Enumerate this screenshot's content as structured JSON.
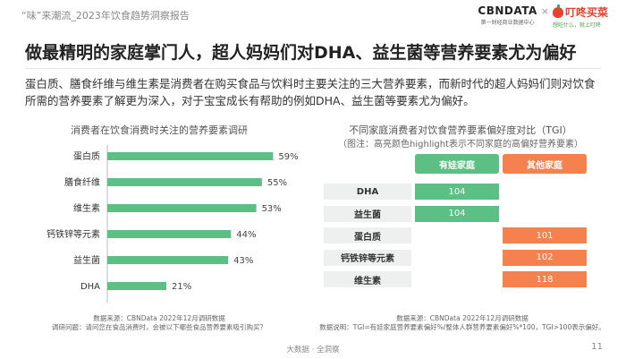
{
  "header": {
    "report_name": "“味”来潮流_2023年饮食趋势洞察报告",
    "logo_cbn": "CBNDATA",
    "logo_cbn_sub": "第一财经商业数据中心",
    "logo_separator": "×",
    "logo_dd": "叮咚买菜",
    "logo_dd_sub": "想吃什么，就上叮咚"
  },
  "title": "做最精明的家庭掌门人，超人妈妈们对DHA、益生菌等营养要素尤为偏好",
  "description": "蛋白质、膳食纤维与维生素是消费者在购买食品与饮料时主要关注的三大营养要素，而新时代的超人妈妈们则对饮食所需的营养要素了解更为深入，对于宝宝成长有帮助的例如DHA、益生菌等要素尤为偏好。",
  "left_chart": {
    "title": "消费者在饮食消费时关注的营养要素调研",
    "source": "数据来源：CBNData 2022年12月调研数据",
    "note": "调研问题：请问您在食品消费时，会被以下哪些食品营养要素吸引购买？"
  },
  "right_chart": {
    "title": "不同家庭消费者对饮食营养要素偏好度对比（TGI）",
    "subtitle": "（图注：高亮颜色highlight表示不同家庭的高偏好营养要素）",
    "source": "数据来源：CBNData 2022年12月调研数据",
    "note": "数据说明：TGI=有娃家庭营养要素偏好%/整体人群营养要素偏好%*100，TGI>100表示偏好。"
  },
  "chart_data": [
    {
      "type": "bar",
      "orientation": "horizontal",
      "title": "消费者在饮食消费时关注的营养要素调研",
      "categories": [
        "蛋白质",
        "膳食纤维",
        "维生素",
        "钙铁锌等元素",
        "益生菌",
        "DHA"
      ],
      "values": [
        59,
        55,
        53,
        44,
        43,
        21
      ],
      "value_labels": [
        "59%",
        "55%",
        "53%",
        "44%",
        "43%",
        "21%"
      ],
      "unit": "%",
      "xlim": [
        0,
        70
      ],
      "grid": false,
      "color": "#5cbf84"
    },
    {
      "type": "table",
      "title": "不同家庭消费者对饮食营养要素偏好度对比（TGI）",
      "columns": [
        "有娃家庭",
        "其他家庭"
      ],
      "column_colors": [
        "#5cbf84",
        "#f5814f"
      ],
      "rows": [
        {
          "label": "DHA",
          "values": [
            104,
            null
          ]
        },
        {
          "label": "益生菌",
          "values": [
            104,
            null
          ]
        },
        {
          "label": "蛋白质",
          "values": [
            null,
            101
          ]
        },
        {
          "label": "钙铁锌等元素",
          "values": [
            null,
            102
          ]
        },
        {
          "label": "维生素",
          "values": [
            null,
            118
          ]
        }
      ]
    }
  ],
  "footer": {
    "text": "大数据 · 全洞察",
    "page": "11"
  }
}
